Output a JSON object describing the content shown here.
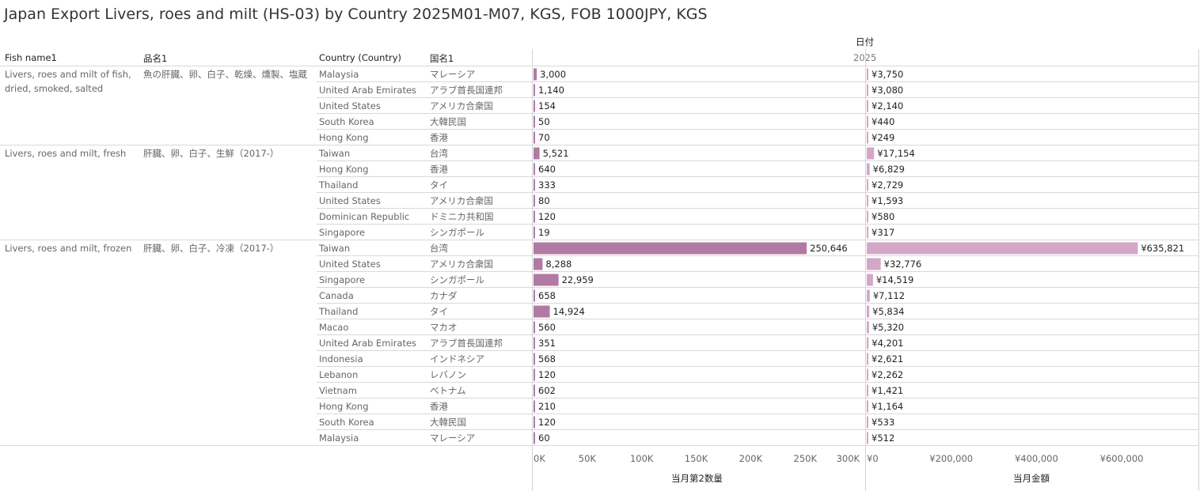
{
  "title": "Japan Export Livers, roes and milt (HS-03) by Country 2025M01-M07, KGS, FOB 1000JPY, KGS",
  "headers": {
    "fish_name": "Fish name1",
    "hinmei": "品名1",
    "country": "Country (Country)",
    "kokumei": "国名1",
    "date_group": "日付",
    "year": "2025"
  },
  "groups": [
    {
      "fish_name": "Livers, roes and milt of fish, dried, smoked, salted",
      "hinmei": "魚の肝臓、卵、白子、乾燥、燻製、塩蔵（…",
      "start_row": 0,
      "row_count": 5
    },
    {
      "fish_name": "Livers, roes and milt, fresh",
      "hinmei": "肝臓、卵、白子、生鮮（2017-）",
      "start_row": 5,
      "row_count": 6
    },
    {
      "fish_name": "Livers, roes and milt, frozen",
      "hinmei": "肝臓、卵、白子、冷凍（2017-）",
      "start_row": 11,
      "row_count": 13
    }
  ],
  "chart_data": {
    "type": "bar",
    "orientation": "horizontal",
    "categories": [
      "Malaysia",
      "United Arab Emirates",
      "United States",
      "South Korea",
      "Hong Kong",
      "Taiwan",
      "Hong Kong",
      "Thailand",
      "United States",
      "Dominican Republic",
      "Singapore",
      "Taiwan",
      "United States",
      "Singapore",
      "Canada",
      "Thailand",
      "Macao",
      "United Arab Emirates",
      "Indonesia",
      "Lebanon",
      "Vietnam",
      "Hong Kong",
      "South Korea",
      "Malaysia"
    ],
    "categories_ja": [
      "マレーシア",
      "アラブ首長国連邦",
      "アメリカ合衆国",
      "大韓民国",
      "香港",
      "台湾",
      "香港",
      "タイ",
      "アメリカ合衆国",
      "ドミニカ共和国",
      "シンガポール",
      "台湾",
      "アメリカ合衆国",
      "シンガポール",
      "カナダ",
      "タイ",
      "マカオ",
      "アラブ首長国連邦",
      "インドネシア",
      "レバノン",
      "ベトナム",
      "香港",
      "大韓民国",
      "マレーシア"
    ],
    "series": [
      {
        "name": "当月第2数量",
        "color": "#b27aa2",
        "values": [
          3000,
          1140,
          154,
          50,
          70,
          5521,
          640,
          333,
          80,
          120,
          19,
          250646,
          8288,
          22959,
          658,
          14924,
          560,
          351,
          568,
          120,
          602,
          210,
          120,
          60
        ],
        "labels": [
          "3,000",
          "1,140",
          "154",
          "50",
          "70",
          "5,521",
          "640",
          "333",
          "80",
          "120",
          "19",
          "250,646",
          "8,288",
          "22,959",
          "658",
          "14,924",
          "560",
          "351",
          "568",
          "120",
          "602",
          "210",
          "120",
          "60"
        ],
        "xlim": [
          0,
          305000
        ],
        "ticks": [
          0,
          50000,
          100000,
          150000,
          200000,
          250000,
          300000
        ],
        "tick_labels": [
          "0K",
          "50K",
          "100K",
          "150K",
          "200K",
          "250K",
          "300K"
        ],
        "axis_title": "当月第2数量"
      },
      {
        "name": "当月金額",
        "color": "#d4a6c8",
        "values": [
          3750,
          3080,
          2140,
          440,
          249,
          17154,
          6829,
          2729,
          1593,
          580,
          317,
          635821,
          32776,
          14519,
          7112,
          5834,
          5320,
          4201,
          2621,
          2262,
          1421,
          1164,
          533,
          512
        ],
        "labels": [
          "¥3,750",
          "¥3,080",
          "¥2,140",
          "¥440",
          "¥249",
          "¥17,154",
          "¥6,829",
          "¥2,729",
          "¥1,593",
          "¥580",
          "¥317",
          "¥635,821",
          "¥32,776",
          "¥14,519",
          "¥7,112",
          "¥5,834",
          "¥5,320",
          "¥4,201",
          "¥2,621",
          "¥2,262",
          "¥1,421",
          "¥1,164",
          "¥533",
          "¥512"
        ],
        "xlim": [
          0,
          780000
        ],
        "ticks": [
          0,
          200000,
          400000,
          600000
        ],
        "tick_labels": [
          "¥0",
          "¥200,000",
          "¥400,000",
          "¥600,000"
        ],
        "axis_title": "当月金額"
      }
    ]
  }
}
